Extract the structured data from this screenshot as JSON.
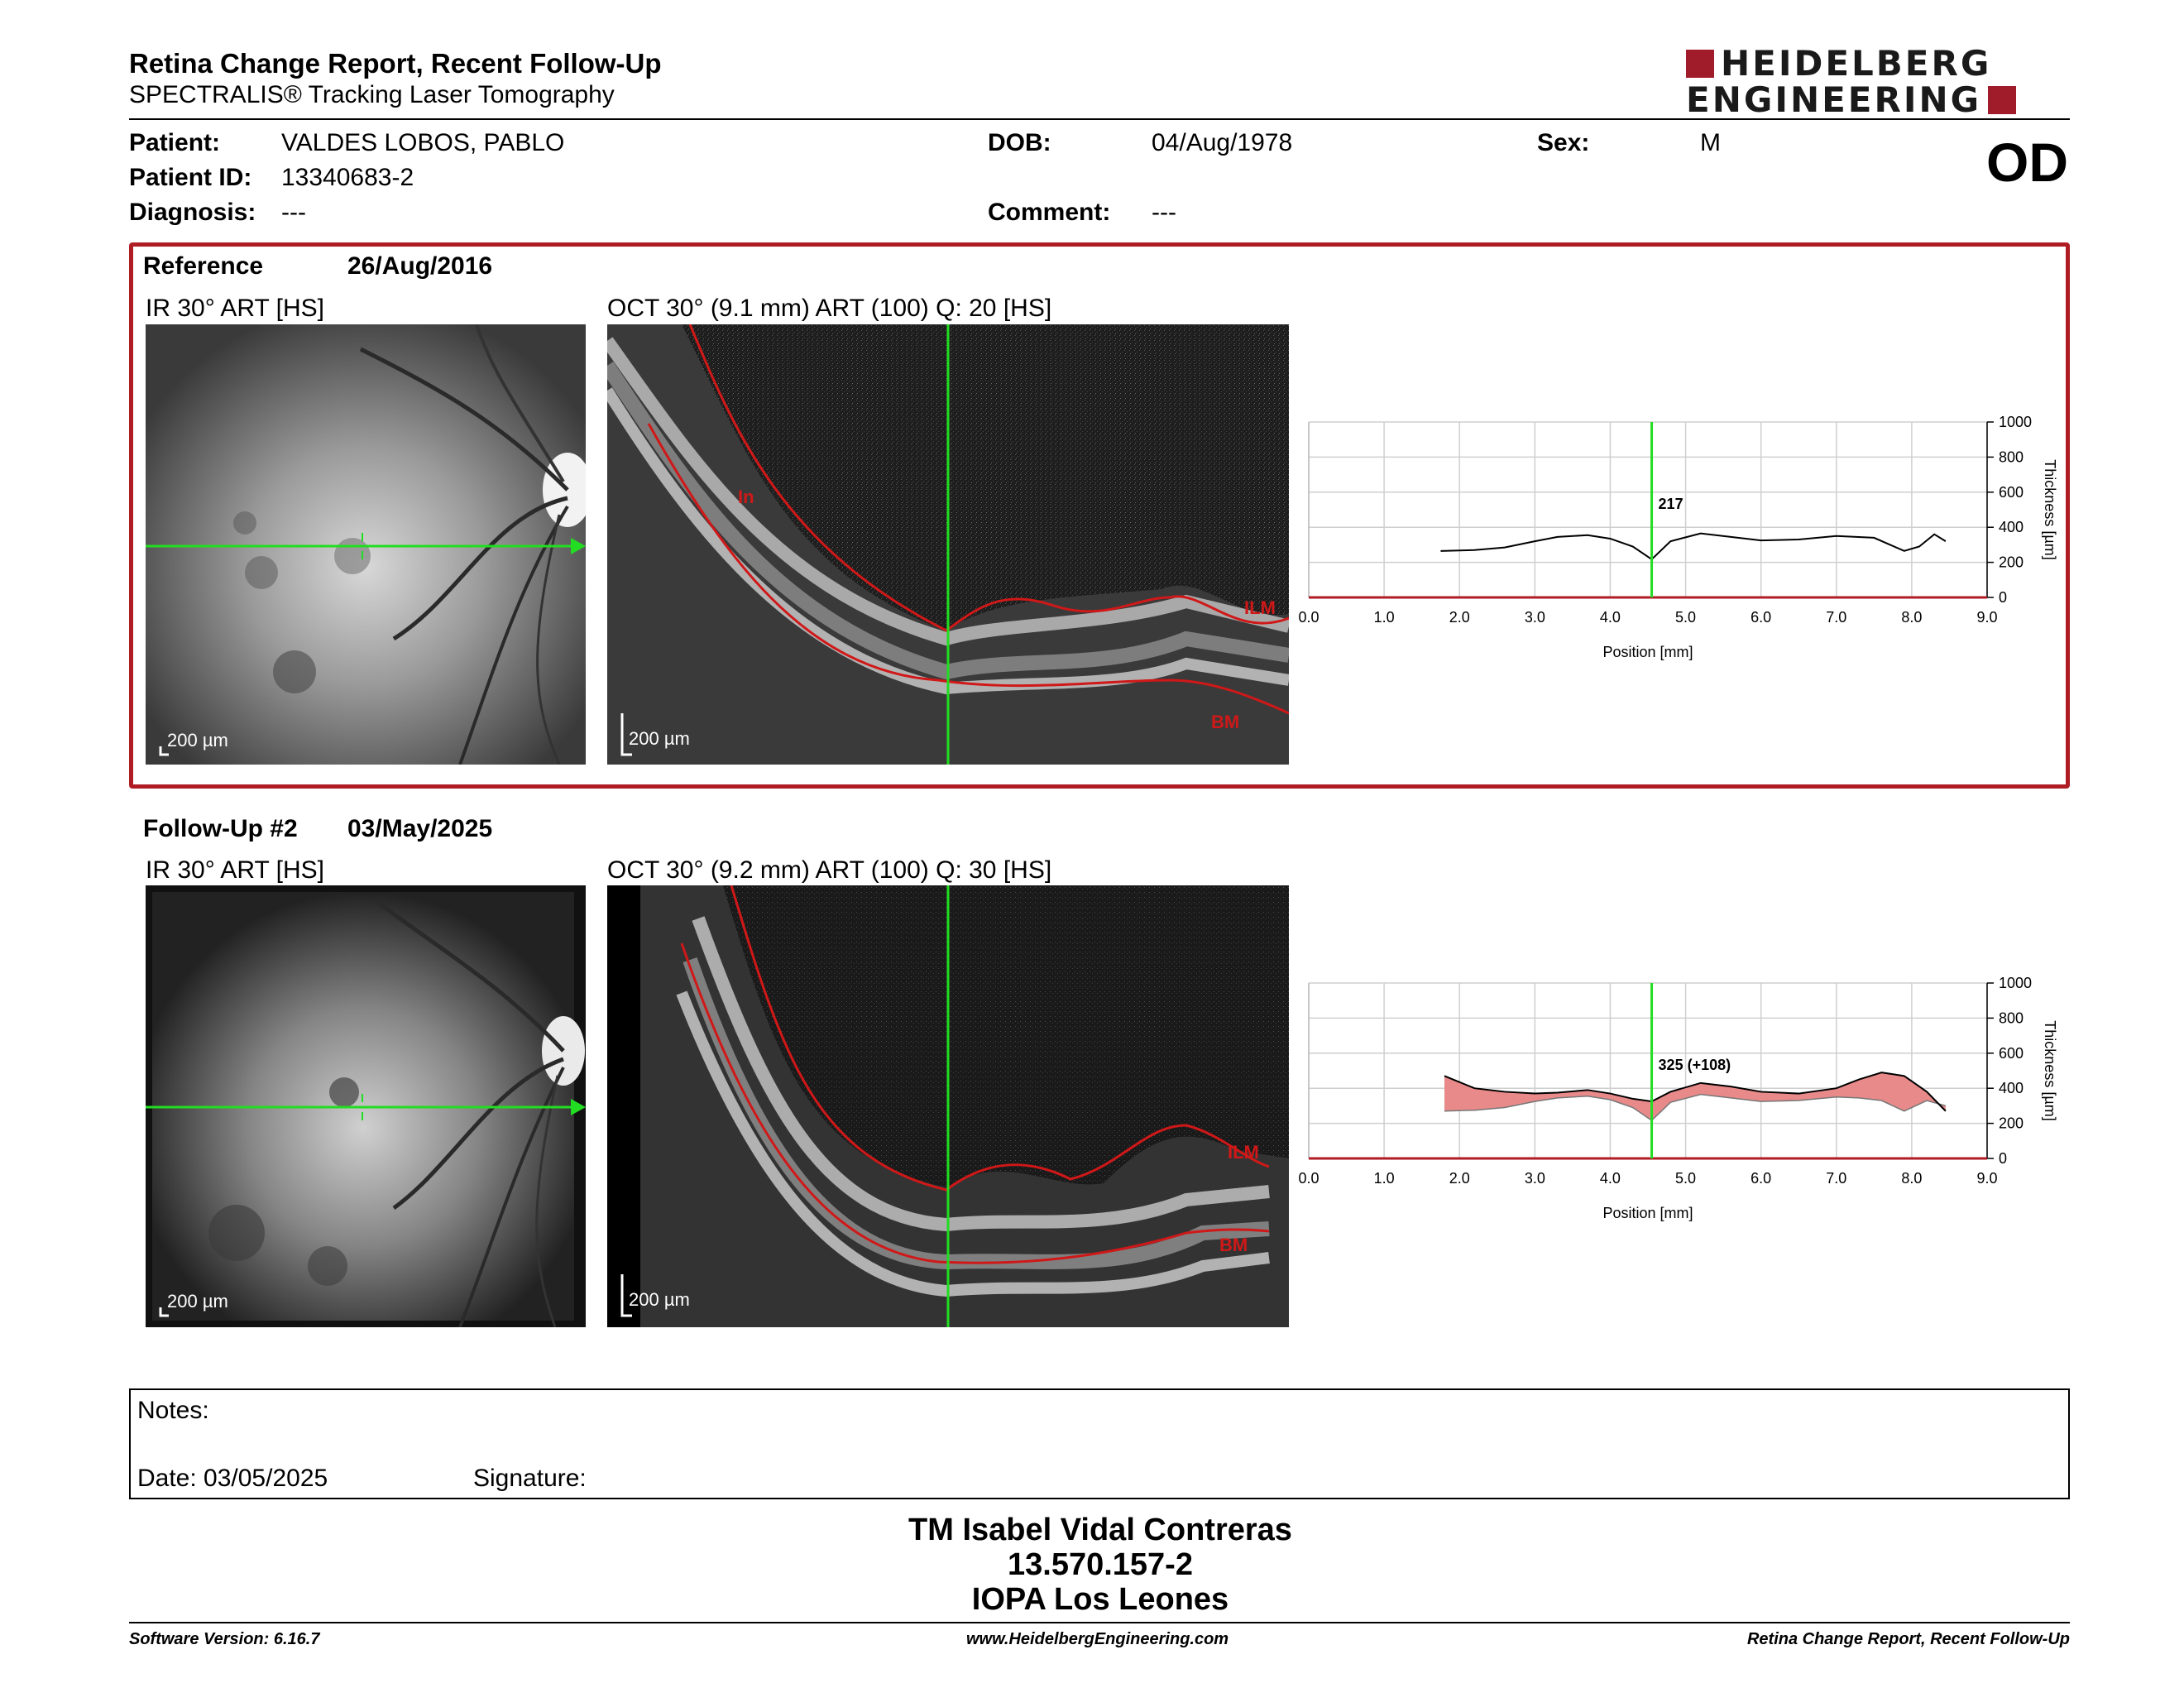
{
  "header": {
    "title": "Retina Change Report, Recent Follow-Up",
    "subtitle": "SPECTRALIS® Tracking Laser Tomography",
    "logo_line1": "HEIDELBERG",
    "logo_line2": "ENGINEERING",
    "eye": "OD"
  },
  "patient": {
    "name_label": "Patient:",
    "name": "VALDES LOBOS, PABLO",
    "id_label": "Patient ID:",
    "id": "13340683-2",
    "diagnosis_label": "Diagnosis:",
    "diagnosis": "---",
    "dob_label": "DOB:",
    "dob": "04/Aug/1978",
    "comment_label": "Comment:",
    "comment": "---",
    "sex_label": "Sex:",
    "sex": "M"
  },
  "colors": {
    "accent_red": "#b01c24",
    "scan_line": "#22dd22",
    "segmentation": "#d01818",
    "change_fill": "#e88a8a"
  },
  "reference": {
    "label": "Reference",
    "date": "26/Aug/2016",
    "ir_caption": "IR 30° ART [HS]",
    "oct_caption": "OCT 30° (9.1 mm) ART (100) Q: 20 [HS]",
    "scale": "200 µm",
    "layer_top": "ILM",
    "layer_bottom": "BM",
    "layer_left": "In",
    "marker_value": "217"
  },
  "followup": {
    "label": "Follow-Up #2",
    "date": "03/May/2025",
    "ir_caption": "IR 30° ART [HS]",
    "oct_caption": "OCT 30° (9.2 mm) ART (100) Q: 30 [HS]",
    "scale": "200 µm",
    "layer_top": "ILM",
    "layer_bottom": "BM",
    "marker_value": "325 (+108)"
  },
  "chart_data": [
    {
      "type": "line",
      "xlabel": "Position [mm]",
      "ylabel": "Thickness [µm]",
      "xlim": [
        0,
        9
      ],
      "ylim": [
        0,
        1000
      ],
      "x_ticks": [
        "0.0",
        "1.0",
        "2.0",
        "3.0",
        "4.0",
        "5.0",
        "6.0",
        "7.0",
        "8.0",
        "9.0"
      ],
      "y_ticks": [
        "0",
        "200",
        "400",
        "600",
        "800",
        "1000"
      ],
      "marker_x": 4.55,
      "marker_label": "217",
      "series": [
        {
          "x": [
            1.75,
            2.2,
            2.6,
            3.0,
            3.3,
            3.7,
            4.0,
            4.3,
            4.55,
            4.8,
            5.2,
            5.6,
            6.0,
            6.5,
            7.0,
            7.5,
            7.9,
            8.1,
            8.3,
            8.45
          ],
          "y": [
            265,
            270,
            285,
            320,
            345,
            355,
            335,
            290,
            217,
            320,
            365,
            345,
            325,
            330,
            350,
            340,
            265,
            290,
            360,
            320
          ]
        }
      ]
    },
    {
      "type": "area",
      "xlabel": "Position [mm]",
      "ylabel": "Thickness [µm]",
      "xlim": [
        0,
        9
      ],
      "ylim": [
        0,
        1000
      ],
      "x_ticks": [
        "0.0",
        "1.0",
        "2.0",
        "3.0",
        "4.0",
        "5.0",
        "6.0",
        "7.0",
        "8.0",
        "9.0"
      ],
      "y_ticks": [
        "0",
        "200",
        "400",
        "600",
        "800",
        "1000"
      ],
      "marker_x": 4.55,
      "marker_label": "325 (+108)",
      "series": [
        {
          "name": "Follow-Up",
          "x": [
            1.8,
            2.2,
            2.6,
            3.0,
            3.3,
            3.7,
            4.0,
            4.3,
            4.55,
            4.8,
            5.2,
            5.6,
            6.0,
            6.5,
            7.0,
            7.3,
            7.6,
            7.9,
            8.2,
            8.45
          ],
          "y": [
            470,
            400,
            380,
            370,
            375,
            390,
            370,
            340,
            325,
            380,
            430,
            410,
            380,
            370,
            400,
            450,
            490,
            470,
            380,
            270
          ]
        },
        {
          "name": "Reference",
          "x": [
            1.8,
            2.2,
            2.6,
            3.0,
            3.3,
            3.7,
            4.0,
            4.3,
            4.55,
            4.8,
            5.2,
            5.6,
            6.0,
            6.5,
            7.0,
            7.3,
            7.6,
            7.9,
            8.2,
            8.45
          ],
          "y": [
            270,
            275,
            290,
            325,
            345,
            355,
            335,
            290,
            217,
            320,
            365,
            345,
            325,
            330,
            350,
            345,
            330,
            270,
            330,
            300
          ]
        }
      ]
    }
  ],
  "notes": {
    "label": "Notes:",
    "date_label": "Date: 03/05/2025",
    "signature_label": "Signature:"
  },
  "signoff": {
    "name": "TM Isabel Vidal Contreras",
    "id": "13.570.157-2",
    "institution": "IOPA Los Leones"
  },
  "footer": {
    "software": "Software Version: 6.16.7",
    "website": "www.HeidelbergEngineering.com",
    "report": "Retina Change Report, Recent Follow-Up"
  }
}
